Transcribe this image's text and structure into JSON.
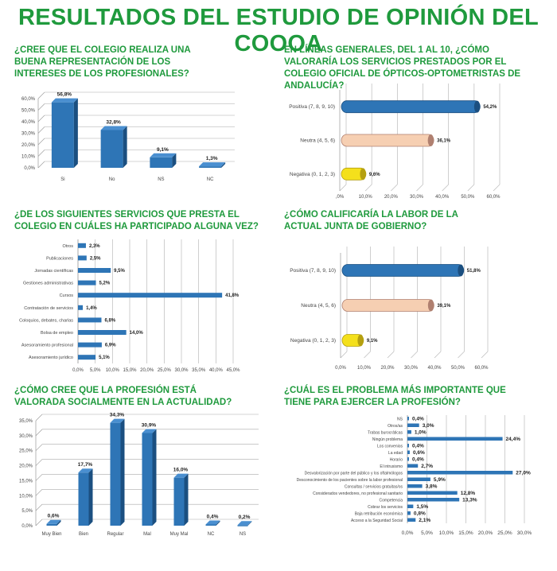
{
  "title": "RESULTADOS DEL ESTUDIO DE OPINIÓN DEL COOOA",
  "colors": {
    "title_green": "#1f9a3d",
    "bar_blue": "#2e75b6",
    "neutral_peach": "#f6cfb2",
    "negative_yellow": "#f4e01c"
  },
  "questions": [
    "¿CREE QUE EL COLEGIO REALIZA UNA BUENA REPRESENTACIÓN DE LOS INTERESES DE LOS PROFESIONALES?",
    "EN LÍNEAS GENERALES, DEL 1 AL 10, ¿CÓMO VALORARÍA LOS SERVICIOS PRESTADOS POR EL COLEGIO OFICIAL DE ÓPTICOS-OPTOMETRISTAS DE ANDALUCÍA?",
    "¿DE LOS SIGUIENTES SERVICIOS QUE PRESTA EL COLEGIO EN CUÁLES HA PARTICIPADO ALGUNA VEZ?",
    "¿CÓMO CALIFICARÍA LA LABOR DE LA ACTUAL JUNTA DE GOBIERNO?",
    "¿CÓMO CREE QUE LA PROFESIÓN ESTÁ VALORADA SOCIALMENTE EN LA ACTUALIDAD?",
    "¿CUÁL ES EL PROBLEMA MÁS IMPORTANTE QUE TIENE PARA EJERCER LA PROFESIÓN?"
  ],
  "chart_data": [
    {
      "type": "bar",
      "orientation": "vertical",
      "style": "3d",
      "categories": [
        "Si",
        "No",
        "NS",
        "NC"
      ],
      "values": [
        56.8,
        32.8,
        9.1,
        1.3
      ],
      "labels": [
        "56,8%",
        "32,8%",
        "9,1%",
        "1,3%"
      ],
      "ylim": [
        0,
        60
      ],
      "yticks": [
        "0,0%",
        "10,0%",
        "20,0%",
        "30,0%",
        "40,0%",
        "50,0%",
        "60,0%"
      ],
      "grid": true
    },
    {
      "type": "bar",
      "orientation": "horizontal",
      "style": "cylinder",
      "categories": [
        "Positiva (7, 8, 9, 10)",
        "Neutra (4, 5, 6)",
        "Negativa (0, 1, 2, 3)"
      ],
      "values": [
        54.2,
        36.1,
        9.6
      ],
      "labels": [
        "54,2%",
        "36,1%",
        "9,6%"
      ],
      "xlim": [
        0,
        60
      ],
      "xticks": [
        ",0%",
        "10,0%",
        "20,0%",
        "30,0%",
        "40,0%",
        "50,0%",
        "60,0%"
      ],
      "grid": true
    },
    {
      "type": "bar",
      "orientation": "horizontal",
      "categories": [
        "Otros",
        "Publicaciones",
        "Jornadas científicas",
        "Gestiones administrativas",
        "Cursos",
        "Contratación de servicios",
        "Coloquios, debates, charlas",
        "Bolsa de empleo",
        "Asesoramiento profesional",
        "Asesoramiento jurídico"
      ],
      "values": [
        2.3,
        2.5,
        9.5,
        5.2,
        41.8,
        1.4,
        6.8,
        14.0,
        6.9,
        5.1
      ],
      "labels": [
        "2,3%",
        "2,5%",
        "9,5%",
        "5,2%",
        "41,8%",
        "1,4%",
        "6,8%",
        "14,0%",
        "6,9%",
        "5,1%"
      ],
      "xlim": [
        0,
        45
      ],
      "xticks": [
        "0,0%",
        "5,0%",
        "10,0%",
        "15,0%",
        "20,0%",
        "25,0%",
        "30,0%",
        "35,0%",
        "40,0%",
        "45,0%"
      ],
      "grid": true
    },
    {
      "type": "bar",
      "orientation": "horizontal",
      "style": "cylinder",
      "categories": [
        "Positiva (7, 8, 9, 10)",
        "Neutra (4, 5, 6)",
        "Negativa (0, 1, 2, 3)"
      ],
      "values": [
        51.8,
        39.1,
        9.1
      ],
      "labels": [
        "51,8%",
        "39,1%",
        "9,1%"
      ],
      "xlim": [
        0,
        60
      ],
      "xticks": [
        "0,0%",
        "10,0%",
        "20,0%",
        "30,0%",
        "40,0%",
        "50,0%",
        "60,0%"
      ],
      "grid": true
    },
    {
      "type": "bar",
      "orientation": "vertical",
      "style": "3d",
      "categories": [
        "Muy Bien",
        "Bien",
        "Regular",
        "Mal",
        "Muy Mal",
        "NC",
        "NS"
      ],
      "values": [
        0.6,
        17.7,
        34.3,
        30.9,
        16.0,
        0.4,
        0.2
      ],
      "labels": [
        "0,6%",
        "17,7%",
        "34,3%",
        "30,9%",
        "16,0%",
        "0,4%",
        "0,2%"
      ],
      "ylim": [
        0,
        35
      ],
      "yticks": [
        "0,0%",
        "5,0%",
        "10,0%",
        "15,0%",
        "20,0%",
        "25,0%",
        "30,0%",
        "35,0%"
      ],
      "grid": true
    },
    {
      "type": "bar",
      "orientation": "horizontal",
      "categories": [
        "NS",
        "Otros/as",
        "Trabas burocráticas",
        "Ningún problema",
        "Los convenios",
        "La edad",
        "Horario",
        "El intrusismo",
        "Desvalorización por parte del público y los oftalmólogos",
        "Desconocimiento de los pacientes sobre la labor profesional",
        "Consultas / servicios gratuitas/os",
        "Considerados vendedores, no profesional sanitario",
        "Competencia",
        "Cobrar los servicios",
        "Baja retribución económica",
        "Acceso a la Seguridad Social"
      ],
      "values": [
        0.4,
        3.0,
        1.0,
        24.4,
        0.4,
        0.6,
        0.4,
        2.7,
        27.0,
        5.9,
        3.8,
        12.8,
        13.3,
        1.5,
        0.8,
        2.1
      ],
      "labels": [
        "0,4%",
        "3,0%",
        "1,0%",
        "24,4%",
        "0,4%",
        "0,6%",
        "0,4%",
        "2,7%",
        "27,0%",
        "5,9%",
        "3,8%",
        "12,8%",
        "13,3%",
        "1,5%",
        "0,8%",
        "2,1%"
      ],
      "xlim": [
        0,
        30
      ],
      "xticks": [
        "0,0%",
        "5,0%",
        "10,0%",
        "15,0%",
        "20,0%",
        "25,0%",
        "30,0%"
      ],
      "grid": true
    }
  ]
}
